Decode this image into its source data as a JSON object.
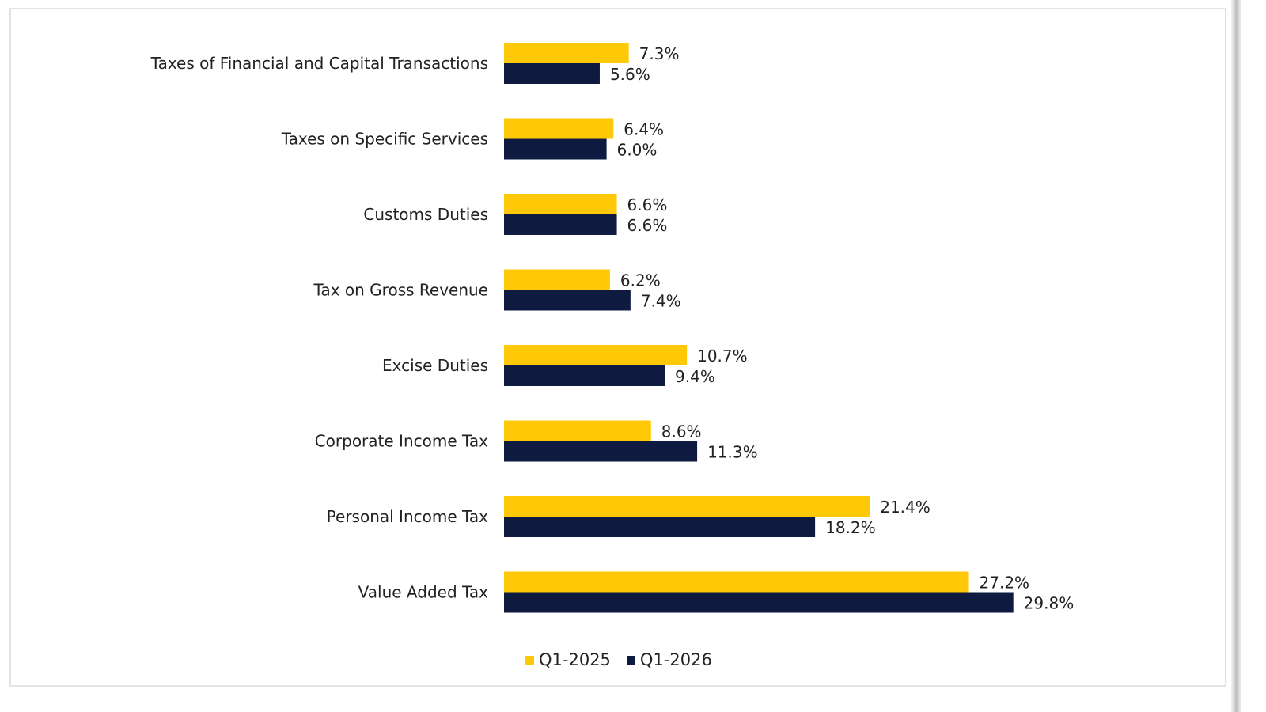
{
  "chart_data": {
    "type": "bar",
    "orientation": "horizontal",
    "categories": [
      "Taxes of Financial and Capital Transactions",
      "Taxes on Specific Services",
      "Customs Duties",
      "Tax on Gross Revenue",
      "Excise Duties",
      "Corporate Income Tax",
      "Personal Income Tax",
      "Value Added Tax"
    ],
    "series": [
      {
        "name": "Q1-2025",
        "color": "#FFC907",
        "values": [
          7.3,
          6.4,
          6.6,
          6.2,
          10.7,
          8.6,
          21.4,
          27.2
        ],
        "labels": [
          "7.3%",
          "6.4%",
          "6.6%",
          "6.2%",
          "10.7%",
          "8.6%",
          "21.4%",
          "27.2%"
        ]
      },
      {
        "name": "Q1-2026",
        "color": "#0E1A3F",
        "values": [
          5.6,
          6.0,
          6.6,
          7.4,
          9.4,
          11.3,
          18.2,
          29.8
        ],
        "labels": [
          "5.6%",
          "6.0%",
          "6.6%",
          "7.4%",
          "9.4%",
          "11.3%",
          "18.2%",
          "29.8%"
        ]
      }
    ],
    "unit": "%",
    "xlim": [
      0,
      30
    ],
    "grid": false,
    "legend_position": "bottom"
  }
}
